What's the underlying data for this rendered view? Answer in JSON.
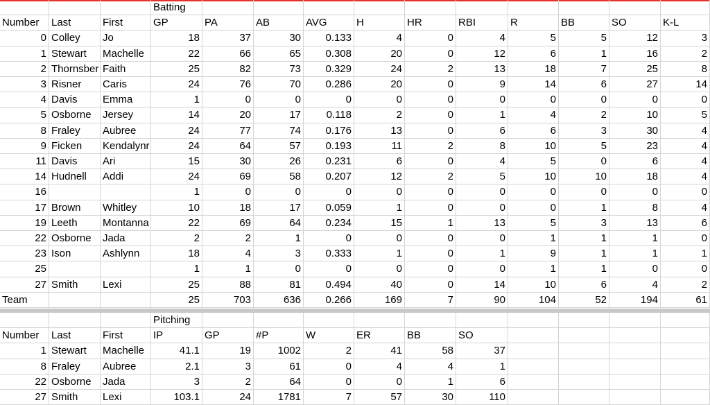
{
  "batting": {
    "section_label": "Batting",
    "headers": [
      "Number",
      "Last",
      "First",
      "GP",
      "PA",
      "AB",
      "AVG",
      "H",
      "HR",
      "RBI",
      "R",
      "BB",
      "SO",
      "K-L"
    ],
    "rows": [
      [
        "0",
        "Colley",
        "Jo",
        "18",
        "37",
        "30",
        "0.133",
        "4",
        "0",
        "4",
        "5",
        "5",
        "12",
        "3"
      ],
      [
        "1",
        "Stewart",
        "Machelle",
        "22",
        "66",
        "65",
        "0.308",
        "20",
        "0",
        "12",
        "6",
        "1",
        "16",
        "2"
      ],
      [
        "2",
        "Thornsber",
        "Faith",
        "25",
        "82",
        "73",
        "0.329",
        "24",
        "2",
        "13",
        "18",
        "7",
        "25",
        "8"
      ],
      [
        "3",
        "Risner",
        "Caris",
        "24",
        "76",
        "70",
        "0.286",
        "20",
        "0",
        "9",
        "14",
        "6",
        "27",
        "14"
      ],
      [
        "4",
        "Davis",
        "Emma",
        "1",
        "0",
        "0",
        "0",
        "0",
        "0",
        "0",
        "0",
        "0",
        "0",
        "0"
      ],
      [
        "5",
        "Osborne",
        "Jersey",
        "14",
        "20",
        "17",
        "0.118",
        "2",
        "0",
        "1",
        "4",
        "2",
        "10",
        "5"
      ],
      [
        "8",
        "Fraley",
        "Aubree",
        "24",
        "77",
        "74",
        "0.176",
        "13",
        "0",
        "6",
        "6",
        "3",
        "30",
        "4"
      ],
      [
        "9",
        "Ficken",
        "Kendalynr",
        "24",
        "64",
        "57",
        "0.193",
        "11",
        "2",
        "8",
        "10",
        "5",
        "23",
        "4"
      ],
      [
        "11",
        "Davis",
        "Ari",
        "15",
        "30",
        "26",
        "0.231",
        "6",
        "0",
        "4",
        "5",
        "0",
        "6",
        "4"
      ],
      [
        "14",
        "Hudnell",
        "Addi",
        "24",
        "69",
        "58",
        "0.207",
        "12",
        "2",
        "5",
        "10",
        "10",
        "18",
        "4"
      ],
      [
        "16",
        "",
        "",
        "1",
        "0",
        "0",
        "0",
        "0",
        "0",
        "0",
        "0",
        "0",
        "0",
        "0"
      ],
      [
        "17",
        "Brown",
        "Whitley",
        "10",
        "18",
        "17",
        "0.059",
        "1",
        "0",
        "0",
        "0",
        "1",
        "8",
        "4"
      ],
      [
        "19",
        "Leeth",
        "Montanna",
        "22",
        "69",
        "64",
        "0.234",
        "15",
        "1",
        "13",
        "5",
        "3",
        "13",
        "6"
      ],
      [
        "22",
        "Osborne",
        "Jada",
        "2",
        "2",
        "1",
        "0",
        "0",
        "0",
        "0",
        "1",
        "1",
        "1",
        "0"
      ],
      [
        "23",
        "Ison",
        "Ashlynn",
        "18",
        "4",
        "3",
        "0.333",
        "1",
        "0",
        "1",
        "9",
        "1",
        "1",
        "1"
      ],
      [
        "25",
        "",
        "",
        "1",
        "1",
        "0",
        "0",
        "0",
        "0",
        "0",
        "1",
        "1",
        "0",
        "0"
      ],
      [
        "27",
        "Smith",
        "Lexi",
        "25",
        "88",
        "81",
        "0.494",
        "40",
        "0",
        "14",
        "10",
        "6",
        "4",
        "2"
      ]
    ],
    "team_row": [
      "Team",
      "",
      "",
      "25",
      "703",
      "636",
      "0.266",
      "169",
      "7",
      "90",
      "104",
      "52",
      "194",
      "61"
    ]
  },
  "pitching": {
    "section_label": "Pitching",
    "headers": [
      "Number",
      "Last",
      "First",
      "IP",
      "GP",
      "#P",
      "W",
      "ER",
      "BB",
      "SO",
      "",
      "",
      "",
      ""
    ],
    "rows": [
      [
        "1",
        "Stewart",
        "Machelle",
        "41.1",
        "19",
        "1002",
        "2",
        "41",
        "58",
        "37",
        "",
        "",
        "",
        ""
      ],
      [
        "8",
        "Fraley",
        "Aubree",
        "2.1",
        "3",
        "61",
        "0",
        "4",
        "4",
        "1",
        "",
        "",
        "",
        ""
      ],
      [
        "22",
        "Osborne",
        "Jada",
        "3",
        "2",
        "64",
        "0",
        "0",
        "1",
        "6",
        "",
        "",
        "",
        ""
      ],
      [
        "27",
        "Smith",
        "Lexi",
        "103.1",
        "24",
        "1781",
        "7",
        "57",
        "30",
        "110",
        "",
        "",
        "",
        ""
      ]
    ]
  }
}
